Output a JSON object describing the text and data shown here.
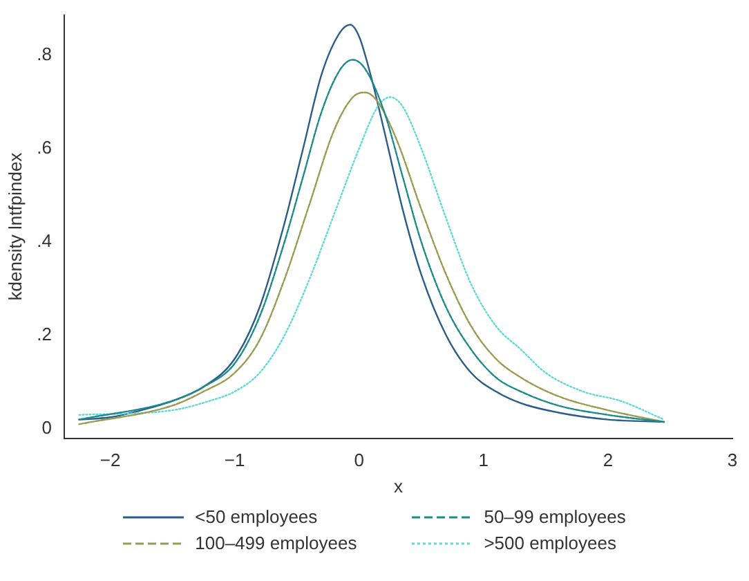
{
  "chart_data": {
    "type": "line",
    "xlabel": "x",
    "ylabel": "kdensity lntfpindex",
    "xlim": [
      -2.37,
      3
    ],
    "ylim": [
      -0.02,
      0.886
    ],
    "xticks": [
      {
        "value": -2,
        "label": "−2"
      },
      {
        "value": -1,
        "label": "−1"
      },
      0,
      1,
      2,
      3
    ],
    "yticks": [
      0,
      {
        "value": 0.2,
        "label": ".2"
      },
      {
        "value": 0.4,
        "label": ".4"
      },
      {
        "value": 0.6,
        "label": ".6"
      },
      {
        "value": 0.8,
        "label": ".8"
      }
    ],
    "grid": false,
    "legend": "bottom",
    "marker": "none",
    "series": [
      {
        "name": "<50 employees",
        "color": "#2a5d8a",
        "line_style": "solid",
        "x": [
          -2.25,
          -2,
          -1.75,
          -1.5,
          -1.25,
          -1,
          -0.8,
          -0.6,
          -0.45,
          -0.3,
          -0.15,
          -0.07,
          0,
          0.1,
          0.2,
          0.35,
          0.5,
          0.7,
          0.9,
          1.1,
          1.3,
          1.6,
          2,
          2.45
        ],
        "values": [
          0.02,
          0.025,
          0.04,
          0.06,
          0.09,
          0.15,
          0.26,
          0.44,
          0.6,
          0.76,
          0.85,
          0.865,
          0.84,
          0.75,
          0.64,
          0.47,
          0.33,
          0.2,
          0.12,
          0.08,
          0.055,
          0.035,
          0.02,
          0.015
        ]
      },
      {
        "name": "50–99 employees",
        "color": "#1a8a8a",
        "line_style": "dashed",
        "x": [
          -2.25,
          -1.5,
          -1.25,
          -1,
          -0.8,
          -0.6,
          -0.45,
          -0.3,
          -0.15,
          -0.05,
          0.05,
          0.2,
          0.35,
          0.5,
          0.7,
          0.9,
          1.1,
          1.3,
          1.6,
          2,
          2.45
        ],
        "values": [
          0.02,
          0.06,
          0.09,
          0.14,
          0.24,
          0.4,
          0.54,
          0.68,
          0.77,
          0.79,
          0.77,
          0.68,
          0.54,
          0.4,
          0.26,
          0.17,
          0.11,
          0.08,
          0.05,
          0.03,
          0.015
        ]
      },
      {
        "name": "100–499 employees",
        "color": "#9a9a50",
        "line_style": "dashed",
        "x": [
          -2.25,
          -1.5,
          -1.25,
          -1,
          -0.8,
          -0.6,
          -0.4,
          -0.2,
          -0.05,
          0.05,
          0.15,
          0.3,
          0.5,
          0.7,
          0.9,
          1.1,
          1.3,
          1.6,
          2,
          2.45
        ],
        "values": [
          0.01,
          0.05,
          0.08,
          0.12,
          0.19,
          0.32,
          0.48,
          0.64,
          0.71,
          0.72,
          0.7,
          0.62,
          0.47,
          0.33,
          0.22,
          0.15,
          0.11,
          0.07,
          0.04,
          0.015
        ]
      },
      {
        "name": ">500 employees",
        "color": "#60d8d8",
        "line_style": "dotted",
        "x": [
          -2.25,
          -1.5,
          -1.2,
          -1,
          -0.8,
          -0.6,
          -0.4,
          -0.2,
          0,
          0.15,
          0.25,
          0.35,
          0.5,
          0.7,
          0.9,
          1.1,
          1.3,
          1.5,
          1.8,
          2.1,
          2.45
        ],
        "values": [
          0.03,
          0.04,
          0.06,
          0.08,
          0.12,
          0.2,
          0.32,
          0.46,
          0.6,
          0.69,
          0.71,
          0.69,
          0.6,
          0.45,
          0.31,
          0.22,
          0.17,
          0.12,
          0.08,
          0.06,
          0.02
        ]
      }
    ]
  }
}
